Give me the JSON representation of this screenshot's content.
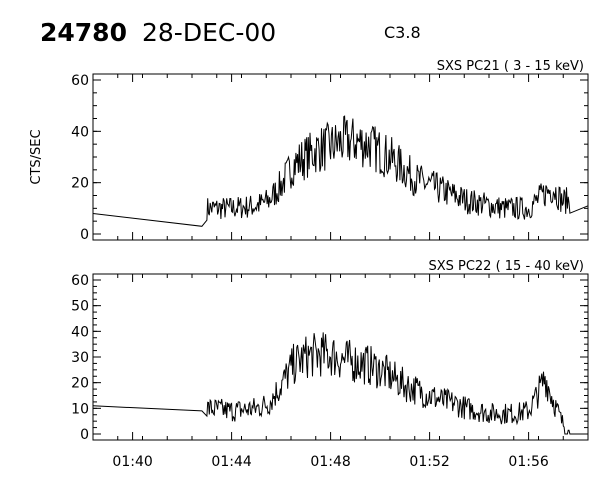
{
  "header": {
    "event_number": "24780",
    "date": "28-DEC-00",
    "flare_class": "C3.8"
  },
  "chart_data": [
    {
      "type": "line",
      "title": "SXS PC21  (  3 - 15 keV)",
      "ylabel": "CTS/SEC",
      "xlabel": "",
      "x_ticks": [
        "01:40",
        "01:44",
        "01:48",
        "01:52",
        "01:56"
      ],
      "y_ticks": [
        0,
        20,
        40,
        60
      ],
      "ylim": [
        0,
        60
      ],
      "xlim": [
        "01:38:24",
        "01:58:24"
      ],
      "grid": false,
      "series": [
        {
          "x": [
            "01:38:24",
            "01:42:48",
            "01:43:00",
            "01:44:00",
            "01:45:00",
            "01:45:30",
            "01:46:00",
            "01:46:30",
            "01:47:00",
            "01:47:30",
            "01:48:00",
            "01:48:30",
            "01:49:00",
            "01:49:30",
            "01:50:00",
            "01:50:30",
            "01:51:00",
            "01:51:30",
            "01:52:00",
            "01:52:30",
            "01:53:00",
            "01:53:30",
            "01:54:00",
            "01:54:30",
            "01:55:00",
            "01:55:30",
            "01:56:00",
            "01:56:20",
            "01:56:40",
            "01:57:00",
            "01:57:20",
            "01:57:40",
            "01:58:24"
          ],
          "values": [
            8,
            3,
            10,
            10,
            11,
            13,
            19,
            27,
            30,
            33,
            34,
            36,
            36,
            35,
            32,
            29,
            25,
            21,
            19,
            17,
            15,
            13,
            12,
            11,
            10,
            10,
            10,
            13,
            16,
            18,
            13,
            13,
            11
          ]
        }
      ]
    },
    {
      "type": "line",
      "title": "SXS PC22  ( 15 - 40 keV)",
      "ylabel": "",
      "xlabel": "",
      "x_ticks": [
        "01:40",
        "01:44",
        "01:48",
        "01:52",
        "01:56"
      ],
      "y_ticks": [
        0,
        10,
        20,
        30,
        40,
        50,
        60
      ],
      "ylim": [
        0,
        60
      ],
      "xlim": [
        "01:38:24",
        "01:58:24"
      ],
      "grid": false,
      "series": [
        {
          "x": [
            "01:38:24",
            "01:42:48",
            "01:43:00",
            "01:44:00",
            "01:45:00",
            "01:45:30",
            "01:46:00",
            "01:46:30",
            "01:47:00",
            "01:47:30",
            "01:48:00",
            "01:48:30",
            "01:49:00",
            "01:49:30",
            "01:50:00",
            "01:50:30",
            "01:51:00",
            "01:51:30",
            "01:52:00",
            "01:52:30",
            "01:53:00",
            "01:53:30",
            "01:54:00",
            "01:54:30",
            "01:55:00",
            "01:55:30",
            "01:56:00",
            "01:56:20",
            "01:56:40",
            "01:57:00",
            "01:57:20",
            "01:57:40",
            "01:58:24"
          ],
          "values": [
            11,
            9,
            10,
            9,
            10,
            12,
            19,
            27,
            30,
            31,
            31,
            29,
            28,
            27,
            25,
            22,
            19,
            17,
            15,
            13,
            12,
            10,
            9,
            8,
            8,
            8,
            9,
            15,
            22,
            13,
            5,
            0,
            0
          ]
        }
      ]
    }
  ]
}
